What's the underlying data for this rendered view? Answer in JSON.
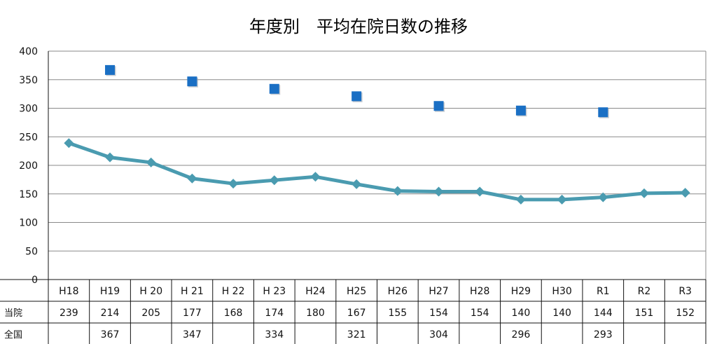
{
  "chart_data": {
    "type": "line",
    "title": "年度別　平均在院日数の推移",
    "categories": [
      "H18",
      "H19",
      "H 20",
      "H 21",
      "H 22",
      "H 23",
      "H24",
      "H25",
      "H26",
      "H27",
      "H28",
      "H29",
      "H30",
      "R1",
      "R2",
      "R3"
    ],
    "ylim": [
      0,
      400
    ],
    "yticks": [
      0,
      50,
      100,
      150,
      200,
      250,
      300,
      350,
      400
    ],
    "grid": true,
    "series": [
      {
        "name": "当院",
        "style": "line-diamond",
        "color": "#4a9bb0",
        "values": [
          239,
          214,
          205,
          177,
          168,
          174,
          180,
          167,
          155,
          154,
          154,
          140,
          140,
          144,
          151,
          152
        ]
      },
      {
        "name": "全国",
        "style": "square-markers",
        "color": "#1a6fc4",
        "values": [
          null,
          367,
          null,
          347,
          null,
          334,
          null,
          321,
          null,
          304,
          null,
          296,
          null,
          293,
          null,
          null
        ]
      }
    ]
  }
}
